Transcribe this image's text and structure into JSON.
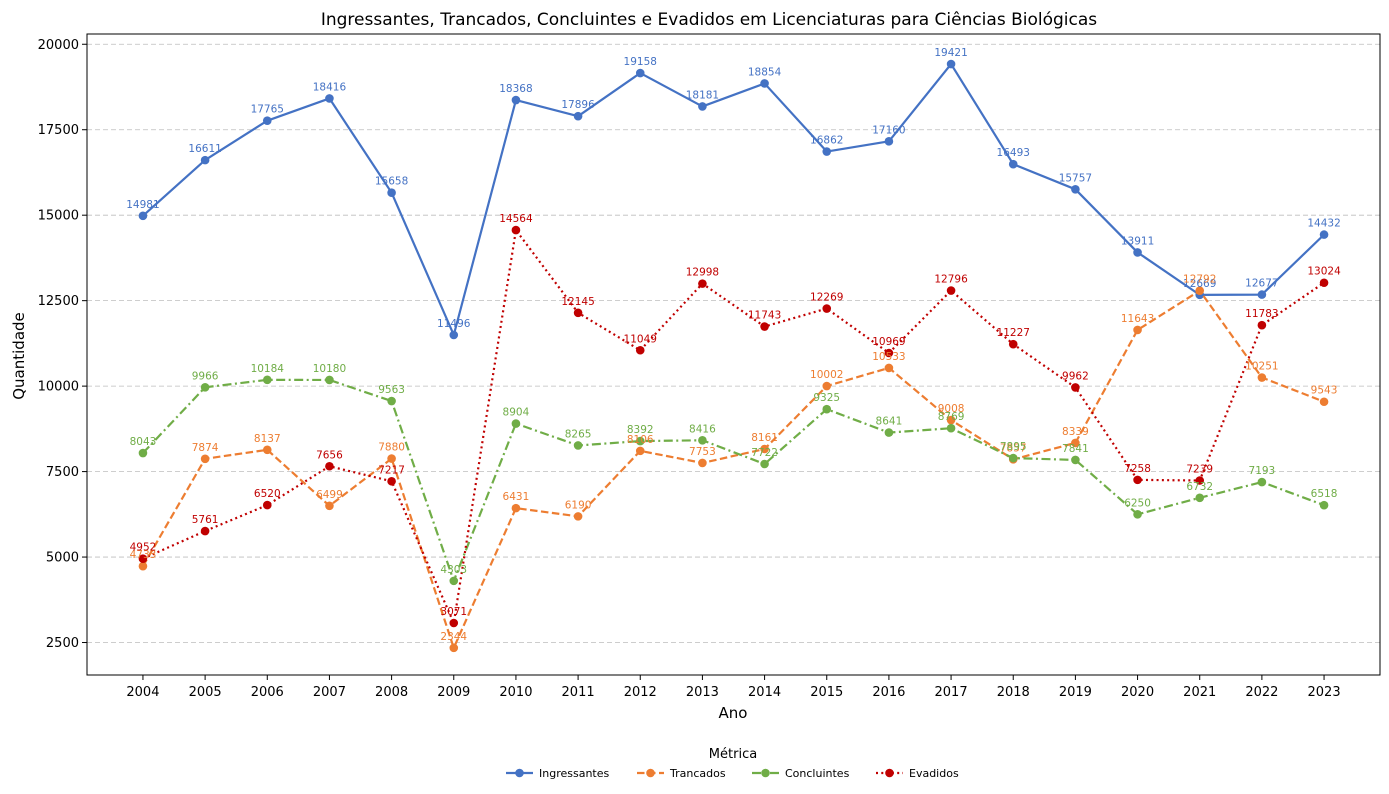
{
  "chart_data": {
    "type": "line",
    "title": "Ingressantes, Trancados, Concluintes e Evadidos em Licenciaturas para Ciências Biológicas",
    "xlabel": "Ano",
    "ylabel": "Quantidade",
    "x": [
      2004,
      2005,
      2006,
      2007,
      2008,
      2009,
      2010,
      2011,
      2012,
      2013,
      2014,
      2015,
      2016,
      2017,
      2018,
      2019,
      2020,
      2021,
      2022,
      2023
    ],
    "x_tick_labels": [
      "2004",
      "2005",
      "2006",
      "2007",
      "2008",
      "2009",
      "2010",
      "2011",
      "2012",
      "2013",
      "2014",
      "2015",
      "2016",
      "2017",
      "2018",
      "2019",
      "2020",
      "2021",
      "2022",
      "2023"
    ],
    "ylim": [
      1550,
      20300
    ],
    "y_ticks": [
      2500,
      5000,
      7500,
      10000,
      12500,
      15000,
      17500,
      20000
    ],
    "y_tick_labels": [
      "2500",
      "5000",
      "7500",
      "10000",
      "12500",
      "15000",
      "17500",
      "20000"
    ],
    "grid": "horizontal-dashed",
    "legend_title": "Métrica",
    "legend_position": "bottom-center",
    "series": [
      {
        "name": "Ingressantes",
        "color": "#4472c4",
        "dash": "solid",
        "values": [
          14981,
          16611,
          17765,
          18416,
          15658,
          11496,
          18368,
          17896,
          19158,
          18181,
          18854,
          16862,
          17160,
          19421,
          16493,
          15757,
          13911,
          12669,
          12677,
          14432
        ],
        "labels": [
          "14981",
          "16611",
          "17765",
          "18416",
          "15658",
          "11496",
          "18368",
          "17896",
          "19158",
          "18181",
          "18854",
          "16862",
          "17160",
          "19421",
          "16493",
          "15757",
          "13911",
          "12669",
          "12677",
          "14432"
        ]
      },
      {
        "name": "Trancados",
        "color": "#ed7d31",
        "dash": "dashed",
        "values": [
          4733,
          7874,
          8137,
          6499,
          7880,
          2344,
          6431,
          6190,
          8106,
          7753,
          8161,
          10002,
          10533,
          9008,
          7857,
          8339,
          11643,
          12792,
          10251,
          9543
        ],
        "labels": [
          "4733",
          "7874",
          "8137",
          "6499",
          "7880",
          "2344",
          "6431",
          "6190",
          "8106",
          "7753",
          "8161",
          "10002",
          "10533",
          "9008",
          "7857",
          "8339",
          "11643",
          "12792",
          "10251",
          "9543"
        ]
      },
      {
        "name": "Concluintes",
        "color": "#70ad47",
        "dash": "dashdot",
        "values": [
          8043,
          9966,
          10184,
          10180,
          9563,
          4303,
          8904,
          8265,
          8392,
          8416,
          7722,
          9325,
          8641,
          8769,
          7895,
          7841,
          6250,
          6732,
          7193,
          6518
        ],
        "labels": [
          "8043",
          "9966",
          "10184",
          "10180",
          "9563",
          "4303",
          "8904",
          "8265",
          "8392",
          "8416",
          "7722",
          "9325",
          "8641",
          "8769",
          "7895",
          "7841",
          "6250",
          "6732",
          "7193",
          "6518"
        ]
      },
      {
        "name": "Evadidos",
        "color": "#c00000",
        "dash": "dotted",
        "values": [
          4952,
          5761,
          6520,
          7656,
          7217,
          3071,
          14564,
          12145,
          11049,
          12998,
          11743,
          12269,
          10969,
          12796,
          11227,
          9962,
          7258,
          7239,
          11783,
          13024
        ],
        "labels": [
          "4952",
          "5761",
          "6520",
          "7656",
          "7217",
          "3071",
          "14564",
          "12145",
          "11049",
          "12998",
          "11743",
          "12269",
          "10969",
          "12796",
          "11227",
          "9962",
          "7258",
          "7239",
          "11783",
          "13024"
        ]
      }
    ]
  }
}
